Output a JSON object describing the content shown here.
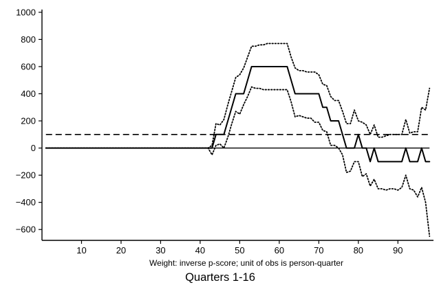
{
  "chart_data": {
    "type": "line",
    "title": "",
    "xlabel": "Weight: inverse p-score; unit of obs is person-quarter",
    "subtitle": "Quarters 1-16",
    "ylabel": "",
    "xlim": [
      0,
      99
    ],
    "ylim": [
      -680,
      1050
    ],
    "x_ticks": [
      10,
      20,
      30,
      40,
      50,
      60,
      70,
      80,
      90
    ],
    "y_ticks": [
      -600,
      -400,
      -200,
      0,
      200,
      400,
      600,
      800,
      1000
    ],
    "x_tick_labels": [
      "10",
      "20",
      "30",
      "40",
      "50",
      "60",
      "70",
      "80",
      "90"
    ],
    "y_tick_labels": [
      "−600",
      "−400",
      "−200",
      "0",
      "200",
      "400",
      "600",
      "800",
      "1000"
    ],
    "grid": false,
    "legend": "none",
    "reference_lines": [
      {
        "y": 0,
        "style": "solid"
      },
      {
        "y": 100,
        "style": "dashed"
      }
    ],
    "series": [
      {
        "style": "solid",
        "x": [
          1,
          42,
          43,
          44,
          45,
          46,
          47,
          48,
          49,
          50,
          51,
          52,
          53,
          54,
          55,
          56,
          57,
          58,
          59,
          60,
          61,
          62,
          63,
          64,
          65,
          66,
          67,
          68,
          69,
          70,
          71,
          72,
          73,
          74,
          75,
          76,
          77,
          78,
          79,
          80,
          81,
          82,
          83,
          84,
          85,
          86,
          87,
          88,
          89,
          90,
          91,
          92,
          93,
          94,
          95,
          96,
          97,
          98
        ],
        "y": [
          0,
          0,
          0,
          100,
          100,
          100,
          200,
          300,
          400,
          400,
          400,
          500,
          600,
          600,
          600,
          600,
          600,
          600,
          600,
          600,
          600,
          600,
          500,
          400,
          400,
          400,
          400,
          400,
          400,
          400,
          300,
          300,
          200,
          200,
          200,
          100,
          0,
          0,
          0,
          100,
          0,
          0,
          -100,
          0,
          -100,
          -100,
          -100,
          -100,
          -100,
          -100,
          -100,
          0,
          -100,
          -100,
          -100,
          0,
          -100,
          -100
        ]
      },
      {
        "style": "dotted",
        "x": [
          1,
          42,
          43,
          44,
          45,
          46,
          47,
          48,
          49,
          50,
          51,
          52,
          53,
          54,
          55,
          56,
          57,
          58,
          59,
          60,
          61,
          62,
          63,
          64,
          65,
          66,
          67,
          68,
          69,
          70,
          71,
          72,
          73,
          74,
          75,
          76,
          77,
          78,
          79,
          80,
          81,
          82,
          83,
          84,
          85,
          86,
          87,
          88,
          89,
          90,
          91,
          92,
          93,
          94,
          95,
          96,
          97,
          98
        ],
        "y": [
          0,
          0,
          20,
          180,
          170,
          210,
          320,
          420,
          520,
          540,
          590,
          670,
          750,
          750,
          760,
          760,
          770,
          770,
          770,
          770,
          770,
          770,
          670,
          590,
          570,
          570,
          560,
          560,
          560,
          540,
          470,
          460,
          380,
          350,
          350,
          270,
          180,
          180,
          280,
          200,
          190,
          170,
          100,
          170,
          80,
          80,
          90,
          100,
          100,
          100,
          100,
          210,
          110,
          120,
          120,
          300,
          280,
          440
        ]
      },
      {
        "style": "dotted",
        "x": [
          1,
          42,
          43,
          44,
          45,
          46,
          47,
          48,
          49,
          50,
          51,
          52,
          53,
          54,
          55,
          56,
          57,
          58,
          59,
          60,
          61,
          62,
          63,
          64,
          65,
          66,
          67,
          68,
          69,
          70,
          71,
          72,
          73,
          74,
          75,
          76,
          77,
          78,
          79,
          80,
          81,
          82,
          83,
          84,
          85,
          86,
          87,
          88,
          89,
          90,
          91,
          92,
          93,
          94,
          95,
          96,
          97,
          98
        ],
        "y": [
          0,
          0,
          -50,
          20,
          30,
          0,
          80,
          180,
          270,
          250,
          320,
          380,
          450,
          440,
          440,
          430,
          430,
          430,
          430,
          430,
          430,
          430,
          340,
          230,
          240,
          230,
          220,
          220,
          190,
          190,
          130,
          120,
          20,
          20,
          0,
          -50,
          -180,
          -170,
          -100,
          -100,
          -210,
          -190,
          -280,
          -230,
          -300,
          -300,
          -310,
          -300,
          -300,
          -310,
          -290,
          -200,
          -300,
          -310,
          -360,
          -290,
          -400,
          -650
        ]
      }
    ]
  }
}
